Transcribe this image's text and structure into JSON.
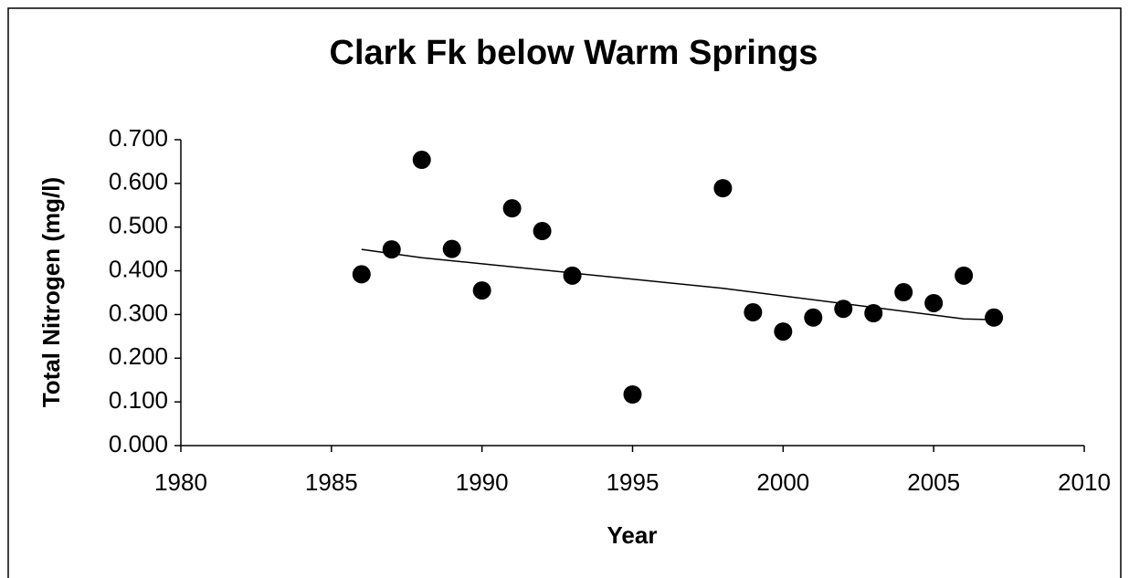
{
  "chart_data": {
    "type": "scatter",
    "title": "Clark Fk below Warm Springs",
    "x_label": "Year",
    "y_label": "Total Nitrogen (mg/l)",
    "x": [
      1986,
      1987,
      1988,
      1989,
      1990,
      1991,
      1992,
      1993,
      1995,
      1998,
      1999,
      2000,
      2001,
      2002,
      2003,
      2004,
      2005,
      2006,
      2007
    ],
    "values": [
      0.392,
      0.449,
      0.654,
      0.45,
      0.355,
      0.543,
      0.491,
      0.389,
      0.117,
      0.589,
      0.305,
      0.261,
      0.293,
      0.313,
      0.303,
      0.351,
      0.326,
      0.389,
      0.293
    ],
    "color": "#000000",
    "trend": {
      "x": [
        1986,
        1988,
        1998,
        2006,
        2007
      ],
      "values": [
        0.449,
        0.43,
        0.36,
        0.29,
        0.288
      ],
      "color": "#000000"
    },
    "xlim": [
      1980,
      2010
    ],
    "xticks": [
      1980,
      1985,
      1990,
      1995,
      2000,
      2005,
      2010
    ],
    "ylim": [
      0,
      0.7
    ],
    "yticks": [
      {
        "value": 0,
        "label": "0.000"
      },
      {
        "value": 0.1,
        "label": "0.100"
      },
      {
        "value": 0.2,
        "label": "0.200"
      },
      {
        "value": 0.3,
        "label": "0.300"
      },
      {
        "value": 0.4,
        "label": "0.400"
      },
      {
        "value": 0.5,
        "label": "0.500"
      },
      {
        "value": 0.6,
        "label": "0.600"
      },
      {
        "value": 0.7,
        "label": "0.700"
      }
    ],
    "grid": false
  }
}
